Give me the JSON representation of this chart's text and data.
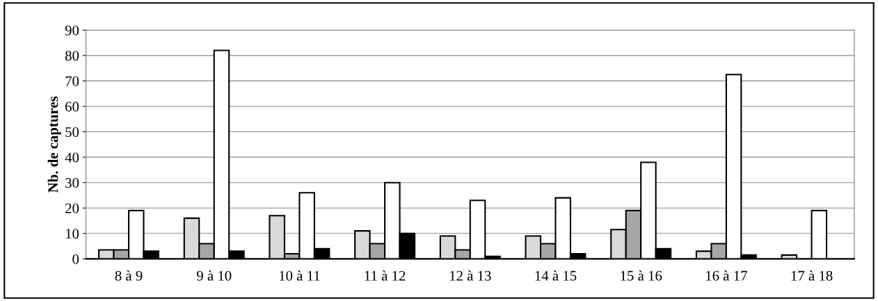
{
  "chart_data": {
    "type": "bar",
    "ylabel": "Nb. de captures",
    "categories": [
      "8 à 9",
      "9 à 10",
      "10 à 11",
      "11 à 12",
      "12 à 13",
      "14 à 15",
      "15 à 16",
      "16 à 17",
      "17 à 18"
    ],
    "series": [
      {
        "color": "#d9d9d9",
        "values": [
          3.5,
          16,
          17,
          11,
          9,
          9,
          11.5,
          3,
          1.5
        ]
      },
      {
        "color": "#a6a6a6",
        "values": [
          3.5,
          6,
          2,
          6,
          3.5,
          6,
          19,
          6,
          null
        ]
      },
      {
        "color": "#ffffff",
        "values": [
          19,
          82,
          26,
          30,
          23,
          24,
          38,
          72.5,
          19
        ]
      },
      {
        "color": "#000000",
        "values": [
          3,
          3,
          4,
          10,
          1,
          2,
          4,
          1.5,
          null
        ]
      }
    ],
    "ylim": [
      0,
      90
    ],
    "yticks": [
      0,
      10,
      20,
      30,
      40,
      50,
      60,
      70,
      80,
      90
    ],
    "grid": "y"
  }
}
